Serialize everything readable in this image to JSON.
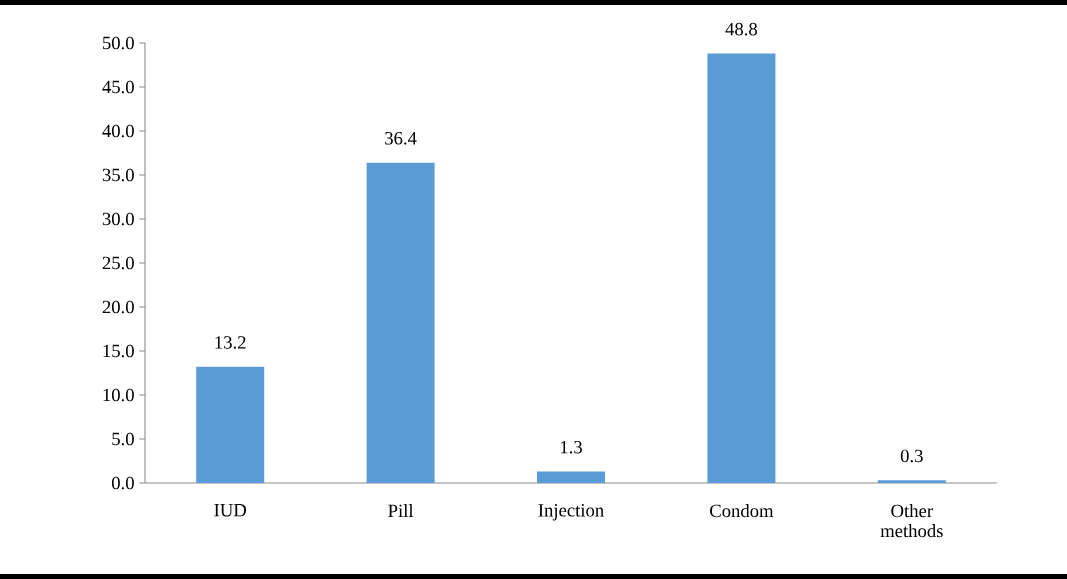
{
  "chart_data": {
    "type": "bar",
    "categories": [
      "IUD",
      "Pill",
      "Injection",
      "Condom",
      "Other methods"
    ],
    "values": [
      13.2,
      36.4,
      1.3,
      48.8,
      0.3
    ],
    "color": "#5b9bd5",
    "ylim": [
      0,
      50
    ],
    "yticks": [
      {
        "value": 0,
        "label": "0.0"
      },
      {
        "value": 5,
        "label": "5.0"
      },
      {
        "value": 10,
        "label": "10.0"
      },
      {
        "value": 15,
        "label": "15.0"
      },
      {
        "value": 20,
        "label": "20.0"
      },
      {
        "value": 25,
        "label": "25.0"
      },
      {
        "value": 30,
        "label": "30.0"
      },
      {
        "value": 35,
        "label": "35.0"
      },
      {
        "value": 40,
        "label": "40.0"
      },
      {
        "value": 45,
        "label": "45.0"
      },
      {
        "value": 50,
        "label": "50.0"
      }
    ],
    "data_labels": true
  }
}
